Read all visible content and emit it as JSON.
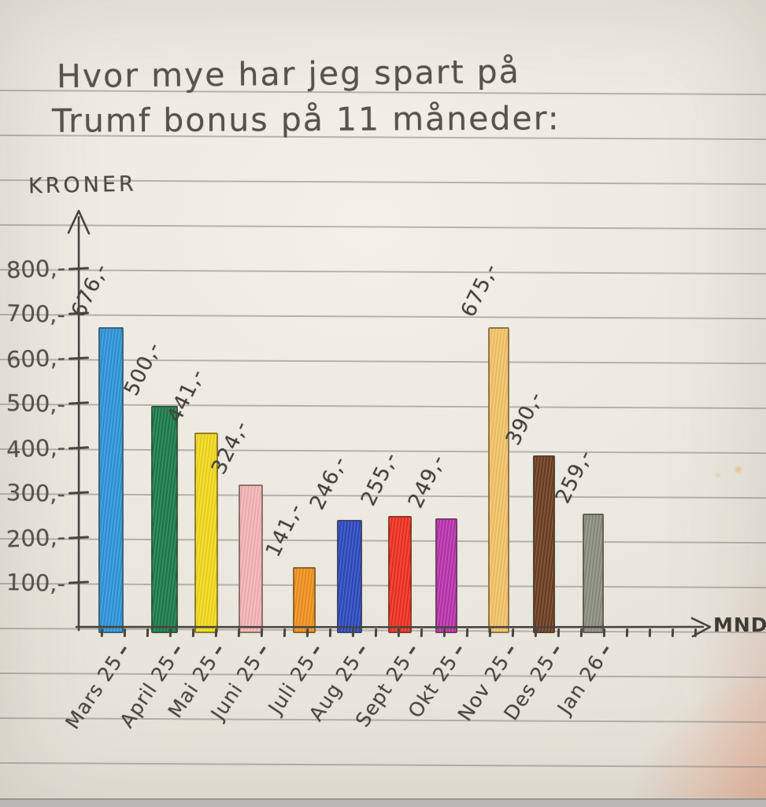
{
  "page": {
    "title_line1": "Hvor mye har jeg spart på",
    "title_line2": "Trumf bonus på 11 måneder:"
  },
  "chart_data": {
    "type": "bar",
    "title": "Hvor mye har jeg spart på Trumf bonus på 11 måneder:",
    "ylabel": "KRONER",
    "xlabel": "MND.",
    "ylim": [
      0,
      800
    ],
    "grid": "horizontal ruled notebook lines",
    "legend": "none",
    "y_ticks": [
      "800,-",
      "700,-",
      "600,-",
      "500,-",
      "400,-",
      "300,-",
      "200,-",
      "100,-"
    ],
    "categories": [
      "Mars 25",
      "April 25",
      "Mai 25",
      "Juni 25",
      "Juli 25",
      "Aug 25",
      "Sept 25",
      "Okt 25",
      "Nov 25",
      "Des 25",
      "Jan 26"
    ],
    "values": [
      676,
      500,
      441,
      324,
      141,
      246,
      255,
      249,
      675,
      390,
      259
    ],
    "value_labels": [
      "676,-",
      "500,-",
      "441,-",
      "324,-",
      "141,-",
      "246,-",
      "255,-",
      "249,-",
      "675,-",
      "390,-",
      "259,-"
    ],
    "bar_colors": [
      "#2e95da",
      "#1a7c49",
      "#f2d91c",
      "#f2b5b6",
      "#f0921e",
      "#2c49c0",
      "#ef3020",
      "#b833ae",
      "#f3c467",
      "#6e3d22",
      "#8b8e80"
    ],
    "x_label_suffix": "–",
    "pencil_color": "#474440",
    "paper_color": "#edeae2"
  }
}
